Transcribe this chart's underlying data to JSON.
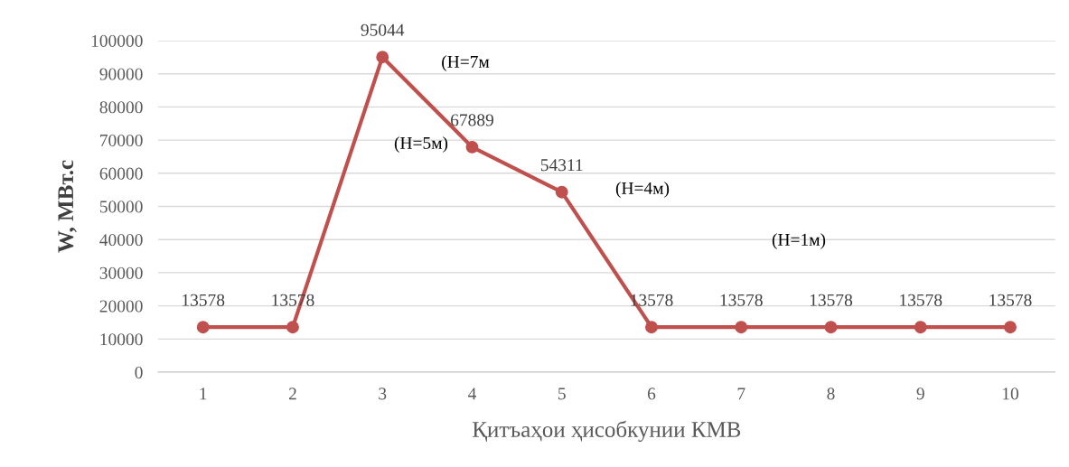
{
  "chart_data": {
    "type": "line",
    "xlabel": "Қитъаҳои ҳисобкунии КМВ",
    "ylabel": "W, МВт.с",
    "x": [
      1,
      2,
      3,
      4,
      5,
      6,
      7,
      8,
      9,
      10
    ],
    "series": [
      {
        "color": "#c0504d",
        "values": [
          13578,
          13578,
          95044,
          67889,
          54311,
          13578,
          13578,
          13578,
          13578,
          13578
        ]
      }
    ],
    "xlim": [
      0.5,
      10.5
    ],
    "xticks": [
      1,
      2,
      3,
      4,
      5,
      6,
      7,
      8,
      9,
      10
    ],
    "ylim": [
      0,
      100000
    ],
    "yticks": [
      0,
      10000,
      20000,
      30000,
      40000,
      50000,
      60000,
      70000,
      80000,
      90000,
      100000
    ],
    "data_labels": true,
    "grid": "y",
    "marker": "circle",
    "line_style": "solid",
    "annotations": [
      "(H=7м",
      "(H=5м)",
      "(H=4м)",
      "(H=1м)"
    ]
  }
}
